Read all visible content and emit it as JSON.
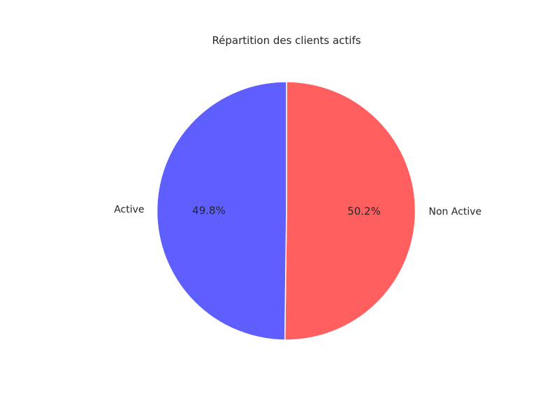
{
  "chart_data": {
    "type": "pie",
    "title": "Répartition des clients actifs",
    "slices": [
      {
        "label": "Non Active",
        "value": 50.2,
        "pct_label": "50.2%",
        "color": "#ff5f5f"
      },
      {
        "label": "Active",
        "value": 49.8,
        "pct_label": "49.8%",
        "color": "#5f5fff"
      }
    ],
    "start_angle": 90,
    "direction": "clockwise",
    "edge_color": "#ffffff"
  }
}
